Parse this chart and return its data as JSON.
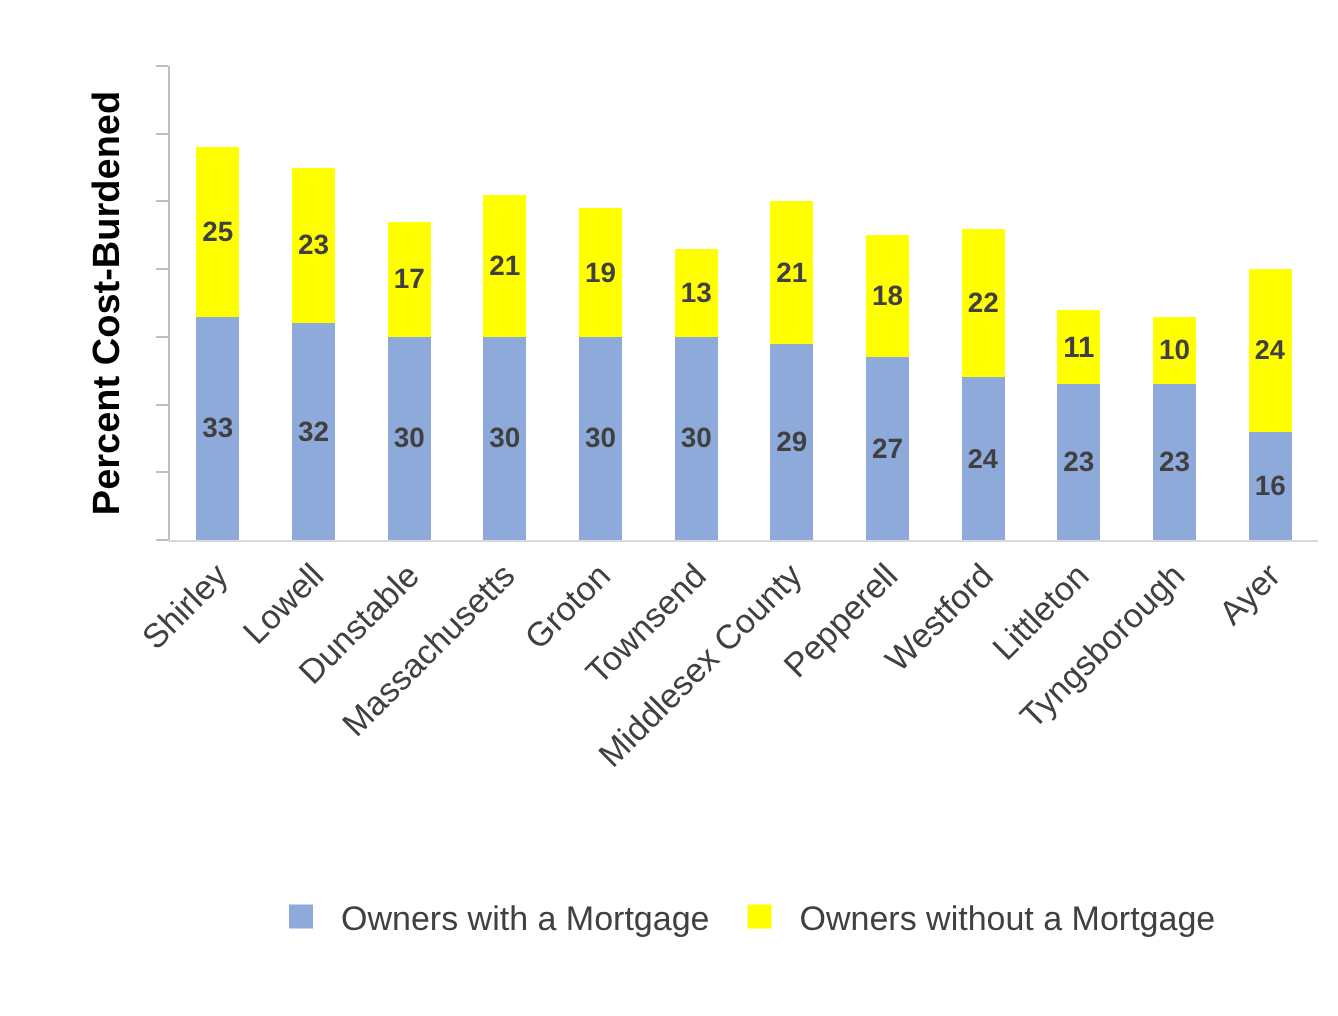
{
  "chart_data": {
    "type": "bar",
    "stacked": true,
    "ylabel": "Percent Cost-Burdened",
    "categories": [
      "Shirley",
      "Lowell",
      "Dunstable",
      "Massachusetts",
      "Groton",
      "Townsend",
      "Middlesex County",
      "Pepperell",
      "Westford",
      "Littleton",
      "Tyngsborough",
      "Ayer"
    ],
    "series": [
      {
        "name": "Owners with a Mortgage",
        "color": "#8eaadb",
        "values": [
          33,
          32,
          30,
          30,
          30,
          30,
          29,
          27,
          24,
          23,
          23,
          16
        ]
      },
      {
        "name": "Owners without a Mortgage",
        "color": "#ffff00",
        "values": [
          25,
          23,
          17,
          21,
          19,
          13,
          21,
          18,
          22,
          11,
          10,
          24
        ]
      }
    ],
    "ylim": [
      0,
      70
    ],
    "yticks": [
      {
        "value": 0,
        "label": null
      },
      {
        "value": 10,
        "label": null
      },
      {
        "value": 20,
        "label": null
      },
      {
        "value": 30,
        "label": null
      },
      {
        "value": 40,
        "label": null
      },
      {
        "value": 50,
        "label": null
      },
      {
        "value": 60,
        "label": null
      },
      {
        "value": 70,
        "label": null
      }
    ],
    "data_labels": true,
    "grid": false,
    "legend": "bottom"
  }
}
